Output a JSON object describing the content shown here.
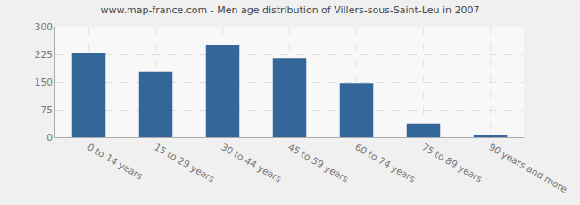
{
  "chart_data": {
    "type": "bar",
    "title": "www.map-france.com - Men age distribution of Villers-sous-Saint-Leu in 2007",
    "categories": [
      "0 to 14 years",
      "15 to 29 years",
      "30 to 44 years",
      "45 to 59 years",
      "60 to 74 years",
      "75 to 89 years",
      "90 years and more"
    ],
    "values": [
      229,
      177,
      250,
      215,
      147,
      37,
      5
    ],
    "color": "#336699",
    "ylim": [
      0,
      300
    ],
    "yticks": [
      0,
      75,
      150,
      225,
      300
    ],
    "grid": true
  }
}
